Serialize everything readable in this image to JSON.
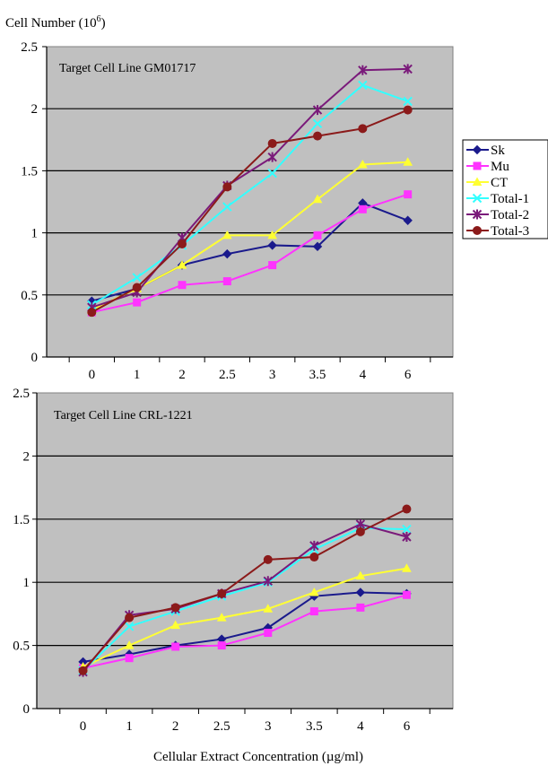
{
  "ylabel_main": "Cell Number (10",
  "ylabel_sup": "6",
  "ylabel_close": ")",
  "xlabel": "Cellular Extract Concentration (µg/ml)",
  "colors": {
    "Sk": "#1a1a8c",
    "Mu": "#ff33ff",
    "CT": "#ffff33",
    "Total-1": "#33ffff",
    "Total-2": "#7a1a7a",
    "Total-3": "#8b1a1a"
  },
  "chart_data": [
    {
      "type": "line",
      "title": "Target Cell Line GM01717",
      "categories": [
        "0",
        "1",
        "2",
        "2.5",
        "3",
        "3.5",
        "4",
        "6"
      ],
      "ylim": [
        0,
        2.5
      ],
      "yticks": [
        "0",
        "0.5",
        "1",
        "1.5",
        "2",
        "2.5"
      ],
      "grid": true,
      "legend": "right",
      "series": [
        {
          "name": "Sk",
          "marker": "diamond",
          "values": [
            0.45,
            0.55,
            0.74,
            0.83,
            0.9,
            0.89,
            1.24,
            1.1
          ]
        },
        {
          "name": "Mu",
          "marker": "square",
          "values": [
            0.36,
            0.44,
            0.58,
            0.61,
            0.74,
            0.98,
            1.19,
            1.31
          ]
        },
        {
          "name": "CT",
          "marker": "triangle",
          "values": [
            0.38,
            0.55,
            0.74,
            0.98,
            0.98,
            1.27,
            1.55,
            1.57
          ]
        },
        {
          "name": "Total-1",
          "marker": "x",
          "values": [
            0.42,
            0.64,
            0.9,
            1.21,
            1.48,
            1.88,
            2.19,
            2.06
          ]
        },
        {
          "name": "Total-2",
          "marker": "star",
          "values": [
            0.4,
            0.52,
            0.96,
            1.38,
            1.61,
            1.99,
            2.31,
            2.32
          ]
        },
        {
          "name": "Total-3",
          "marker": "circle",
          "values": [
            0.36,
            0.56,
            0.91,
            1.37,
            1.72,
            1.78,
            1.84,
            1.99
          ]
        }
      ]
    },
    {
      "type": "line",
      "title": "Target Cell Line CRL-1221",
      "categories": [
        "0",
        "1",
        "2",
        "2.5",
        "3",
        "3.5",
        "4",
        "6"
      ],
      "ylim": [
        0,
        2.5
      ],
      "yticks": [
        "0",
        "0.5",
        "1",
        "1.5",
        "2",
        "2.5"
      ],
      "grid": true,
      "series": [
        {
          "name": "Sk",
          "marker": "diamond",
          "values": [
            0.37,
            0.43,
            0.5,
            0.55,
            0.64,
            0.89,
            0.92,
            0.91
          ]
        },
        {
          "name": "Mu",
          "marker": "square",
          "values": [
            0.32,
            0.4,
            0.49,
            0.5,
            0.6,
            0.77,
            0.8,
            0.9
          ]
        },
        {
          "name": "CT",
          "marker": "triangle",
          "values": [
            0.33,
            0.5,
            0.66,
            0.72,
            0.79,
            0.92,
            1.05,
            1.11
          ]
        },
        {
          "name": "Total-1",
          "marker": "x",
          "values": [
            0.3,
            0.65,
            0.77,
            0.89,
            1.0,
            1.26,
            1.43,
            1.42
          ]
        },
        {
          "name": "Total-2",
          "marker": "star",
          "values": [
            0.29,
            0.74,
            0.79,
            0.91,
            1.01,
            1.29,
            1.46,
            1.36
          ]
        },
        {
          "name": "Total-3",
          "marker": "circle",
          "values": [
            0.3,
            0.72,
            0.8,
            0.91,
            1.18,
            1.2,
            1.4,
            1.58
          ]
        }
      ]
    }
  ]
}
